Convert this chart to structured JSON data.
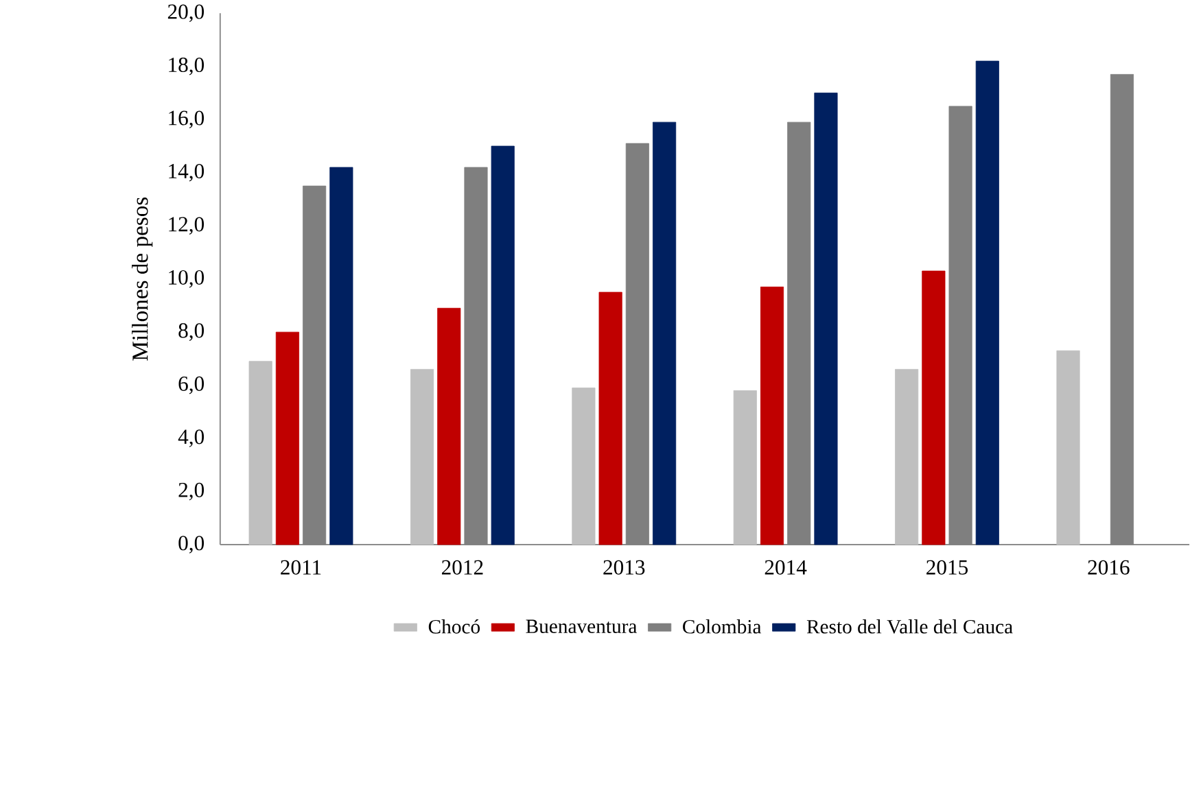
{
  "chart_data": {
    "type": "bar",
    "ylabel": "Millones de pesos",
    "categories": [
      "2011",
      "2012",
      "2013",
      "2014",
      "2015",
      "2016"
    ],
    "series": [
      {
        "name": "Chocó",
        "color": "#bfbfbf",
        "values": [
          6.9,
          6.6,
          5.9,
          5.8,
          6.6,
          7.3
        ]
      },
      {
        "name": "Buenaventura",
        "color": "#c00000",
        "values": [
          8.0,
          8.9,
          9.5,
          9.7,
          10.3,
          null
        ]
      },
      {
        "name": "Colombia",
        "color": "#7f7f7f",
        "values": [
          13.5,
          14.2,
          15.1,
          15.9,
          16.5,
          17.7
        ]
      },
      {
        "name": "Resto del Valle del Cauca",
        "color": "#002060",
        "values": [
          14.2,
          15.0,
          15.9,
          17.0,
          18.2,
          null
        ]
      }
    ],
    "ylim": [
      0,
      20
    ],
    "yticks": [
      {
        "value": 0,
        "label": "0,0"
      },
      {
        "value": 2,
        "label": "2,0"
      },
      {
        "value": 4,
        "label": "4,0"
      },
      {
        "value": 6,
        "label": "6,0"
      },
      {
        "value": 8,
        "label": "8,0"
      },
      {
        "value": 10,
        "label": "10,0"
      },
      {
        "value": 12,
        "label": "12,0"
      },
      {
        "value": 14,
        "label": "14,0"
      },
      {
        "value": 16,
        "label": "16,0"
      },
      {
        "value": 18,
        "label": "18,0"
      },
      {
        "value": 20,
        "label": "20,0"
      }
    ],
    "grid": false,
    "legend": "bottom"
  }
}
